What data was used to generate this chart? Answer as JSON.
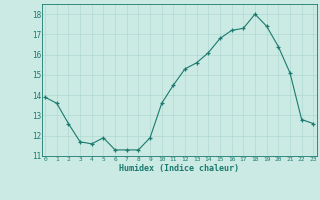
{
  "x": [
    0,
    1,
    2,
    3,
    4,
    5,
    6,
    7,
    8,
    9,
    10,
    11,
    12,
    13,
    14,
    15,
    16,
    17,
    18,
    19,
    20,
    21,
    22,
    23
  ],
  "y": [
    13.9,
    13.6,
    12.6,
    11.7,
    11.6,
    11.9,
    11.3,
    11.3,
    11.3,
    11.9,
    13.6,
    14.5,
    15.3,
    15.6,
    16.1,
    16.8,
    17.2,
    17.3,
    18.0,
    17.4,
    16.4,
    15.1,
    12.8,
    12.6
  ],
  "bg_color": "#cceae4",
  "grid_color": "#b0d9d2",
  "line_color": "#1a7a6e",
  "marker_color": "#1a7a6e",
  "xlabel": "Humidex (Indice chaleur)",
  "ylim": [
    11,
    18.5
  ],
  "yticks": [
    11,
    12,
    13,
    14,
    15,
    16,
    17,
    18
  ],
  "xticks": [
    0,
    1,
    2,
    3,
    4,
    5,
    6,
    7,
    8,
    9,
    10,
    11,
    12,
    13,
    14,
    15,
    16,
    17,
    18,
    19,
    20,
    21,
    22,
    23
  ],
  "xlim": [
    -0.3,
    23.3
  ]
}
